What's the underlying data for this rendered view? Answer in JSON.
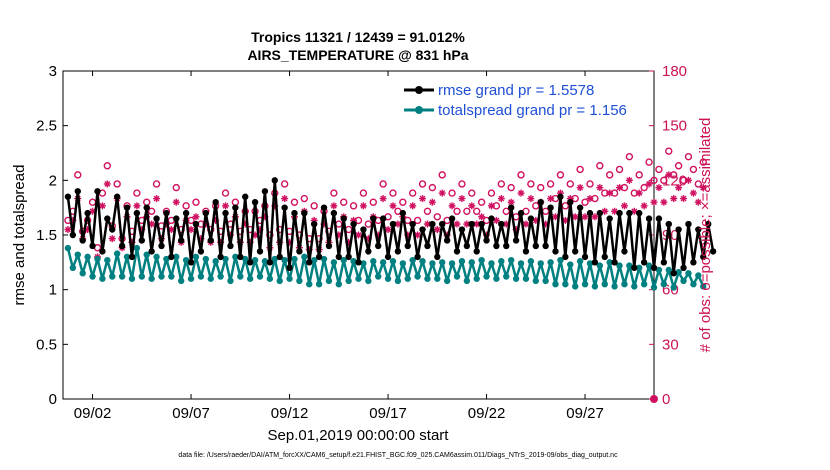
{
  "chart_data": {
    "type": "line",
    "title_line1": "Tropics 11321 / 12439 = 91.012%",
    "title_line2": "AIRS_TEMPERATURE @ 831 hPa",
    "xlabel": "Sep.01,2019 00:00:00 start",
    "ylabel_left": "rmse and totalspread",
    "ylabel_right": "# of obs: o=possible; ×=assimilated",
    "xlim": [
      0.5,
      30.5
    ],
    "ylim_left": [
      0,
      3
    ],
    "ylim_right": [
      0,
      180
    ],
    "x_ticks": [
      {
        "day": 2,
        "label": "09/02"
      },
      {
        "day": 7,
        "label": "09/07"
      },
      {
        "day": 12,
        "label": "09/12"
      },
      {
        "day": 17,
        "label": "09/17"
      },
      {
        "day": 22,
        "label": "09/22"
      },
      {
        "day": 27,
        "label": "09/27"
      }
    ],
    "y_ticks_left": [
      "0",
      "0.5",
      "1",
      "1.5",
      "2",
      "2.5",
      "3"
    ],
    "y_ticks_right": [
      "0",
      "30",
      "60",
      "90",
      "120",
      "150",
      "180"
    ],
    "legend_position": "top-right",
    "series": [
      {
        "name": "rmse grand pr = 1.5578",
        "color": "#000000",
        "marker": "filled-circle",
        "axis": "left",
        "values": [
          1.85,
          1.5,
          1.9,
          1.45,
          1.7,
          1.4,
          1.9,
          1.35,
          1.65,
          1.55,
          1.85,
          1.4,
          1.75,
          1.3,
          1.7,
          1.45,
          1.75,
          1.35,
          1.65,
          1.4,
          1.7,
          1.3,
          1.65,
          1.45,
          1.7,
          1.25,
          1.6,
          1.35,
          1.7,
          1.45,
          1.8,
          1.3,
          1.7,
          1.4,
          1.75,
          1.3,
          1.85,
          1.25,
          1.8,
          1.35,
          1.9,
          1.25,
          2.0,
          1.3,
          1.75,
          1.2,
          1.7,
          1.35,
          1.7,
          1.25,
          1.6,
          1.3,
          1.75,
          1.4,
          1.7,
          1.3,
          1.65,
          1.3,
          1.6,
          1.25,
          1.55,
          1.35,
          1.65,
          1.4,
          1.65,
          1.3,
          1.6,
          1.35,
          1.7,
          1.4,
          1.6,
          1.3,
          1.55,
          1.4,
          1.6,
          1.3,
          1.6,
          1.45,
          1.65,
          1.35,
          1.55,
          1.4,
          1.6,
          1.35,
          1.6,
          1.45,
          1.65,
          1.4,
          1.6,
          1.4,
          1.75,
          1.45,
          1.7,
          1.35,
          1.65,
          1.4,
          1.8,
          1.4,
          1.75,
          1.35,
          1.85,
          1.3,
          1.8,
          1.35,
          1.75,
          1.3,
          1.7,
          1.25,
          1.7,
          1.3,
          1.65,
          1.25,
          1.7,
          1.35,
          1.7,
          1.2,
          1.7,
          1.25,
          1.65,
          1.2,
          1.65,
          1.25,
          1.6,
          1.15,
          1.55,
          1.2,
          1.6,
          1.25,
          1.55,
          1.3,
          1.6,
          1.35
        ],
        "start_day": 0.75,
        "step_days": 0.25
      },
      {
        "name": "totalspread grand pr = 1.156",
        "color": "#008080",
        "marker": "filled-circle",
        "axis": "left",
        "values": [
          1.38,
          1.2,
          1.32,
          1.15,
          1.3,
          1.12,
          1.28,
          1.1,
          1.27,
          1.12,
          1.33,
          1.12,
          1.3,
          1.1,
          1.38,
          1.12,
          1.32,
          1.1,
          1.3,
          1.12,
          1.28,
          1.12,
          1.3,
          1.08,
          1.27,
          1.1,
          1.3,
          1.12,
          1.28,
          1.1,
          1.26,
          1.12,
          1.28,
          1.08,
          1.3,
          1.12,
          1.28,
          1.1,
          1.27,
          1.12,
          1.26,
          1.1,
          1.28,
          1.08,
          1.27,
          1.1,
          1.28,
          1.08,
          1.3,
          1.05,
          1.27,
          1.05,
          1.28,
          1.08,
          1.25,
          1.05,
          1.27,
          1.08,
          1.26,
          1.1,
          1.24,
          1.08,
          1.26,
          1.12,
          1.25,
          1.1,
          1.26,
          1.08,
          1.24,
          1.1,
          1.27,
          1.12,
          1.26,
          1.1,
          1.24,
          1.1,
          1.25,
          1.08,
          1.24,
          1.12,
          1.26,
          1.08,
          1.25,
          1.1,
          1.27,
          1.12,
          1.24,
          1.1,
          1.26,
          1.12,
          1.27,
          1.1,
          1.24,
          1.1,
          1.26,
          1.08,
          1.24,
          1.08,
          1.25,
          1.05,
          1.27,
          1.05,
          1.23,
          1.03,
          1.26,
          1.05,
          1.24,
          1.03,
          1.22,
          1.05,
          1.25,
          1.03,
          1.22,
          1.05,
          1.22,
          1.03,
          1.2,
          1.05,
          1.22,
          1.02,
          1.18,
          1.05,
          1.18,
          1.02,
          1.16,
          1.08,
          1.15,
          1.05,
          1.13,
          1.03
        ],
        "start_day": 0.75,
        "step_days": 0.25
      }
    ],
    "obs_possible": {
      "name": "possible",
      "color": "#d01060",
      "marker": "open-circle",
      "axis": "right",
      "values": [
        98,
        103,
        123,
        92,
        98,
        108,
        83,
        113,
        128,
        95,
        118,
        88,
        106,
        92,
        113,
        98,
        108,
        103,
        118,
        95,
        103,
        98,
        116,
        93,
        106,
        98,
        108,
        96,
        103,
        93,
        106,
        92,
        113,
        96,
        108,
        92,
        103,
        93,
        103,
        98,
        106,
        90,
        113,
        93,
        118,
        92,
        108,
        90,
        110,
        88,
        106,
        88,
        103,
        92,
        113,
        96,
        108,
        93,
        106,
        98,
        113,
        96,
        108,
        98,
        118,
        100,
        113,
        103,
        108,
        98,
        113,
        98,
        118,
        103,
        116,
        100,
        123,
        98,
        113,
        103,
        118,
        103,
        113,
        103,
        108,
        98,
        113,
        106,
        118,
        103,
        116,
        100,
        123,
        103,
        118,
        106,
        116,
        103,
        118,
        110,
        123,
        106,
        118,
        110,
        126,
        108,
        118,
        110,
        128,
        113,
        123,
        113,
        126,
        116,
        133,
        113,
        123,
        116,
        130,
        120,
        126,
        120,
        136,
        123,
        128,
        120,
        133,
        126,
        118,
        130
      ],
      "start_day": 0.75,
      "step_days": 0.25
    },
    "obs_assimilated": {
      "name": "assimilated",
      "color": "#d01060",
      "marker": "asterisk",
      "axis": "right",
      "values": [
        93,
        98,
        110,
        88,
        93,
        103,
        78,
        106,
        118,
        88,
        110,
        83,
        100,
        86,
        106,
        93,
        100,
        96,
        110,
        88,
        96,
        93,
        108,
        86,
        98,
        93,
        100,
        88,
        96,
        86,
        98,
        86,
        106,
        90,
        100,
        86,
        96,
        86,
        90,
        93,
        100,
        83,
        106,
        86,
        110,
        86,
        100,
        83,
        103,
        82,
        98,
        82,
        96,
        86,
        106,
        90,
        100,
        86,
        98,
        90,
        106,
        88,
        100,
        90,
        110,
        93,
        106,
        96,
        100,
        90,
        106,
        90,
        110,
        96,
        108,
        93,
        113,
        90,
        106,
        96,
        110,
        96,
        106,
        96,
        100,
        90,
        106,
        98,
        110,
        96,
        108,
        93,
        113,
        96,
        110,
        98,
        108,
        96,
        110,
        100,
        113,
        98,
        110,
        100,
        116,
        100,
        110,
        100,
        116,
        103,
        113,
        103,
        116,
        106,
        120,
        103,
        113,
        106,
        118,
        108,
        116,
        108,
        123,
        110,
        116,
        110,
        120,
        113,
        108,
        116
      ],
      "start_day": 0.75,
      "step_days": 0.25
    }
  },
  "footer": {
    "data_file": "data file: /Users/raeder/DAI/ATM_forcXX/CAM6_setup/f.e21.FHIST_BGC.f09_025.CAM6assim.011/Diags_NTrS_2019-09/obs_diag_output.nc"
  },
  "colors": {
    "rmse": "#000000",
    "spread": "#008080",
    "obs": "#d01060",
    "legend_text": "#1f4fd6"
  }
}
